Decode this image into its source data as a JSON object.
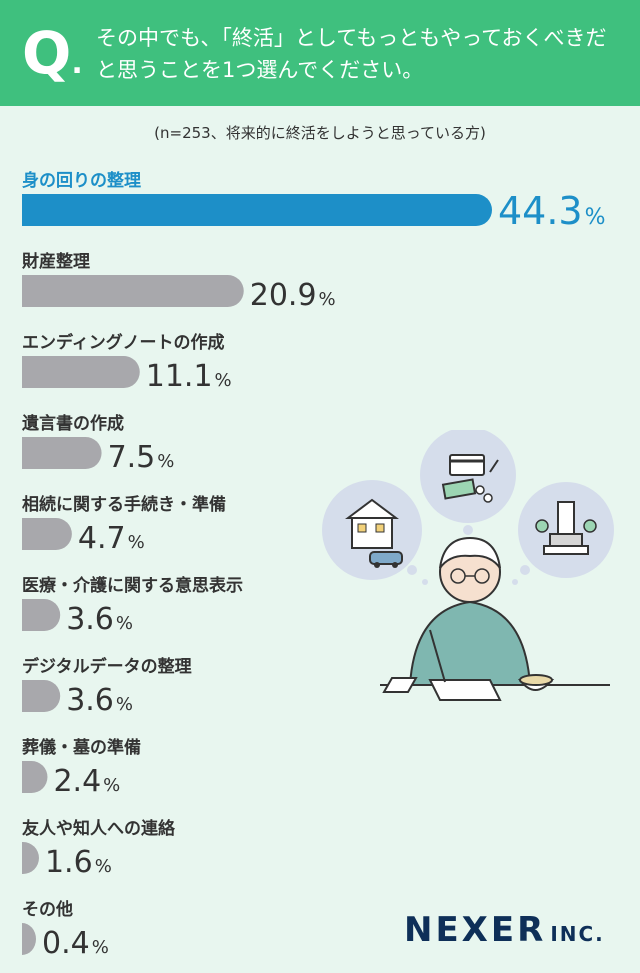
{
  "header": {
    "q_mark": "Q",
    "question": "その中でも、「終活」としてもっともやっておくべきだと思うことを1つ選んでください。"
  },
  "note": "(n=253、将来的に終活をしようと思っている方)",
  "chart_data": {
    "type": "bar",
    "orientation": "horizontal",
    "categories": [
      "身の回りの整理",
      "財産整理",
      "エンディングノートの作成",
      "遺言書の作成",
      "相続に関する手続き・準備",
      "医療・介護に関する意思表示",
      "デジタルデータの整理",
      "葬儀・墓の準備",
      "友人や知人への連絡",
      "その他"
    ],
    "values": [
      44.3,
      20.9,
      11.1,
      7.5,
      4.7,
      3.6,
      3.6,
      2.4,
      1.6,
      0.4
    ],
    "unit": "%",
    "highlight_index": 0,
    "colors": {
      "highlight": "#1d8fc8",
      "bar": "#a8a8ac"
    }
  },
  "logo": {
    "main": "NEXER",
    "sub": "INC."
  }
}
